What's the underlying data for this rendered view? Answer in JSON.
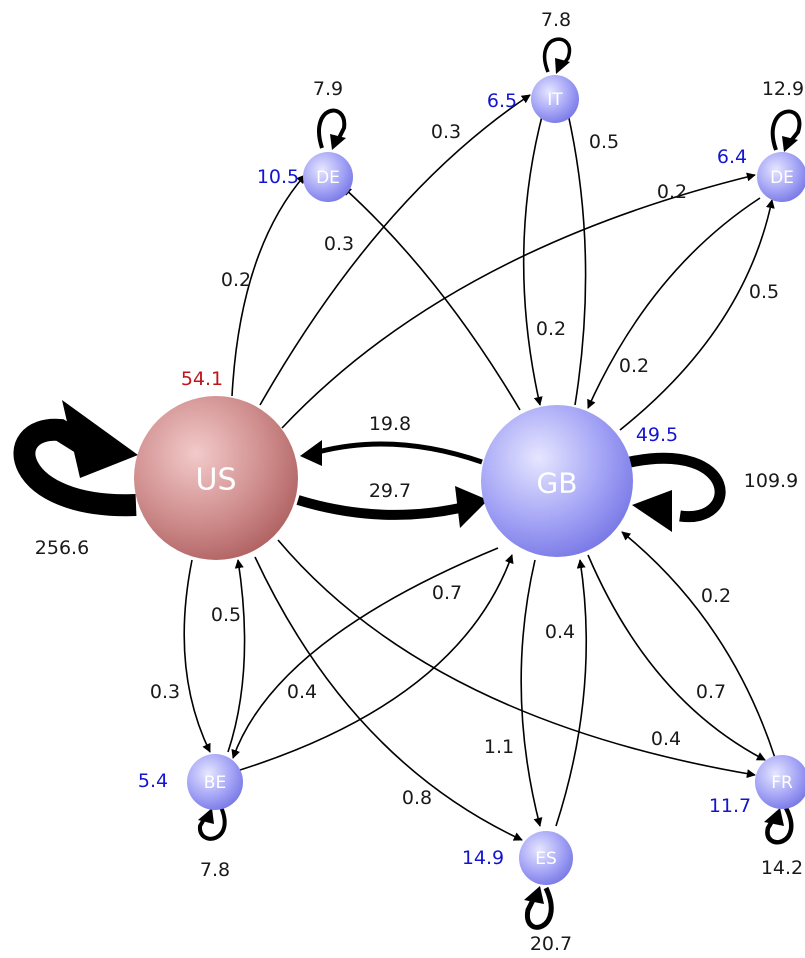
{
  "colors": {
    "us_fill_light": "#e8b0b0",
    "us_fill_dark": "#b86a6a",
    "gb_fill_light": "#dcdcff",
    "gb_fill_dark": "#7e7ef0",
    "us_value_color": "#c0141c",
    "other_value_color": "#1414d2",
    "edge_color": "#000000"
  },
  "nodes": {
    "us": {
      "label": "US",
      "value": "54.1"
    },
    "gb": {
      "label": "GB",
      "value": "49.5"
    },
    "de1": {
      "label": "DE",
      "value": "10.5"
    },
    "it": {
      "label": "IT",
      "value": "6.5"
    },
    "de2": {
      "label": "DE",
      "value": "6.4"
    },
    "be": {
      "label": "BE",
      "value": "5.4"
    },
    "es": {
      "label": "ES",
      "value": "14.9"
    },
    "fr": {
      "label": "FR",
      "value": "11.7"
    }
  },
  "self_loops": {
    "us": "256.6",
    "gb": "109.9",
    "de1": "7.9",
    "it": "7.8",
    "de2": "12.9",
    "be": "7.8",
    "es": "20.7",
    "fr": "14.2"
  },
  "edges": {
    "gb_us": "19.8",
    "us_gb": "29.7",
    "us_de1": "0.2",
    "gb_de1": "0.3",
    "us_it": "0.3",
    "gb_it": "0.5",
    "us_de2": "0.2",
    "gb_de2": "0.5",
    "it_gb": "0.2",
    "de2_gb": "0.2",
    "us_be": "0.3",
    "be_us": "0.5",
    "be_gb": "0.7",
    "gb_be": "0.4",
    "us_es": "0.8",
    "gb_es": "1.1",
    "es_gb": "0.4",
    "us_fr": "0.4",
    "gb_fr": "0.7",
    "fr_gb": "0.2"
  }
}
